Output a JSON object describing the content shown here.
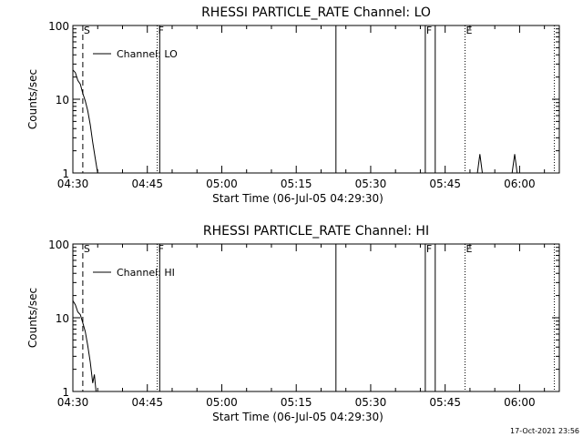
{
  "chart_data": [
    {
      "type": "line",
      "title": "RHESSI PARTICLE_RATE Channel: LO",
      "xlabel": "Start Time (06-Jul-05 04:29:30)",
      "ylabel": "Counts/sec",
      "yscale": "log",
      "ylim": [
        1,
        100
      ],
      "xlim": [
        "04:30",
        "06:08"
      ],
      "xticks": [
        "04:30",
        "04:45",
        "05:00",
        "05:15",
        "05:30",
        "05:45",
        "06:00"
      ],
      "yticks": [
        "1",
        "10",
        "100"
      ],
      "legend": {
        "position": "top-left",
        "entries": [
          "Channel: LO"
        ]
      },
      "series": [
        {
          "name": "Channel: LO",
          "segments": [
            [
              [
                "04:30",
                25
              ],
              [
                "04:30:30",
                23
              ],
              [
                "04:31",
                18
              ],
              [
                "04:31:30",
                16
              ],
              [
                "04:32",
                12
              ],
              [
                "04:32:30",
                9.5
              ],
              [
                "04:33",
                7
              ],
              [
                "04:33:30",
                4.5
              ],
              [
                "04:34",
                2.6
              ],
              [
                "04:34:30",
                1.6
              ],
              [
                "04:35",
                1.0
              ]
            ],
            [
              [
                "05:51:30",
                1.0
              ],
              [
                "05:52",
                1.8
              ],
              [
                "05:52:30",
                1.0
              ]
            ],
            [
              [
                "05:58:30",
                1.0
              ],
              [
                "05:59",
                1.8
              ],
              [
                "05:59:30",
                1.0
              ]
            ]
          ]
        }
      ],
      "markers": [
        {
          "label": "S",
          "time": "04:32",
          "style": "dashed"
        },
        {
          "label": "F",
          "time": "04:47",
          "style": "dotted"
        },
        {
          "label": "",
          "time": "04:47:30",
          "style": "solid"
        },
        {
          "label": "",
          "time": "05:23",
          "style": "solid"
        },
        {
          "label": "F",
          "time": "05:41",
          "style": "solid"
        },
        {
          "label": "",
          "time": "05:43",
          "style": "solid"
        },
        {
          "label": "E",
          "time": "05:49",
          "style": "dotted"
        },
        {
          "label": "",
          "time": "06:07",
          "style": "dotted"
        }
      ]
    },
    {
      "type": "line",
      "title": "RHESSI PARTICLE_RATE Channel: HI",
      "xlabel": "Start Time (06-Jul-05 04:29:30)",
      "ylabel": "Counts/sec",
      "yscale": "log",
      "ylim": [
        1,
        100
      ],
      "xlim": [
        "04:30",
        "06:08"
      ],
      "xticks": [
        "04:30",
        "04:45",
        "05:00",
        "05:15",
        "05:30",
        "05:45",
        "06:00"
      ],
      "yticks": [
        "1",
        "10",
        "100"
      ],
      "legend": {
        "position": "top-left",
        "entries": [
          "Channel: HI"
        ]
      },
      "series": [
        {
          "name": "Channel: HI",
          "segments": [
            [
              [
                "04:30",
                17
              ],
              [
                "04:30:30",
                15
              ],
              [
                "04:31",
                12
              ],
              [
                "04:31:30",
                11
              ],
              [
                "04:32",
                8.5
              ],
              [
                "04:32:30",
                6.5
              ],
              [
                "04:33",
                4.2
              ],
              [
                "04:33:30",
                2.5
              ],
              [
                "04:34",
                1.3
              ],
              [
                "04:34:20",
                1.7
              ],
              [
                "04:34:40",
                1.0
              ]
            ]
          ]
        }
      ],
      "markers": [
        {
          "label": "S",
          "time": "04:32",
          "style": "dashed"
        },
        {
          "label": "F",
          "time": "04:47",
          "style": "dotted"
        },
        {
          "label": "",
          "time": "04:47:30",
          "style": "solid"
        },
        {
          "label": "",
          "time": "05:23",
          "style": "solid"
        },
        {
          "label": "F",
          "time": "05:41",
          "style": "solid"
        },
        {
          "label": "",
          "time": "05:43",
          "style": "solid"
        },
        {
          "label": "E",
          "time": "05:49",
          "style": "dotted"
        },
        {
          "label": "",
          "time": "06:07",
          "style": "dotted"
        }
      ]
    }
  ],
  "timestamp": "17-Oct-2021 23:56"
}
